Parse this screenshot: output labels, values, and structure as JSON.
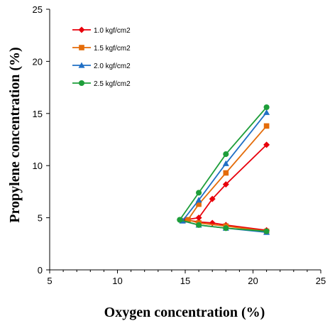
{
  "chart_data": {
    "type": "scatter",
    "xlabel": "Oxygen concentration (%)",
    "ylabel": "Propylene concentration (%)",
    "xlim": [
      5,
      25
    ],
    "ylim": [
      0,
      25
    ],
    "x_ticks": [
      "5",
      "10",
      "15",
      "20",
      "25"
    ],
    "y_ticks": [
      "0",
      "5",
      "10",
      "15",
      "20",
      "25"
    ],
    "grid": false,
    "legend_position": "top-left",
    "series": [
      {
        "name": "1.0 kgf/cm2",
        "color": "#e8000b",
        "marker": "diamond",
        "upper": {
          "x": [
            15.0,
            16.0,
            17.0,
            18.0,
            21.0
          ],
          "y": [
            4.8,
            5.0,
            6.8,
            8.2,
            12.0
          ]
        },
        "lower": {
          "x": [
            15.0,
            16.0,
            17.0,
            18.0,
            21.0
          ],
          "y": [
            4.8,
            4.6,
            4.5,
            4.3,
            3.8
          ]
        }
      },
      {
        "name": "1.5 kgf/cm2",
        "color": "#e46c0a",
        "marker": "square",
        "upper": {
          "x": [
            15.2,
            16.0,
            18.0,
            21.0
          ],
          "y": [
            4.8,
            6.3,
            9.3,
            13.8
          ]
        },
        "lower": {
          "x": [
            15.2,
            16.0,
            18.0,
            21.0
          ],
          "y": [
            4.8,
            4.5,
            4.2,
            3.7
          ]
        }
      },
      {
        "name": "2.0 kgf/cm2",
        "color": "#1f6fc5",
        "marker": "triangle",
        "upper": {
          "x": [
            14.8,
            16.0,
            18.0,
            21.0
          ],
          "y": [
            4.7,
            6.7,
            10.2,
            15.1
          ]
        },
        "lower": {
          "x": [
            14.8,
            16.0,
            18.0,
            21.0
          ],
          "y": [
            4.7,
            4.3,
            4.0,
            3.6
          ]
        }
      },
      {
        "name": "2.5 kgf/cm2",
        "color": "#1e9e3a",
        "marker": "circle",
        "upper": {
          "x": [
            14.6,
            16.0,
            18.0,
            21.0
          ],
          "y": [
            4.8,
            7.4,
            11.1,
            15.6
          ]
        },
        "lower": {
          "x": [
            14.6,
            16.0,
            18.0,
            21.0
          ],
          "y": [
            4.8,
            4.3,
            4.0,
            3.7
          ]
        }
      }
    ]
  }
}
